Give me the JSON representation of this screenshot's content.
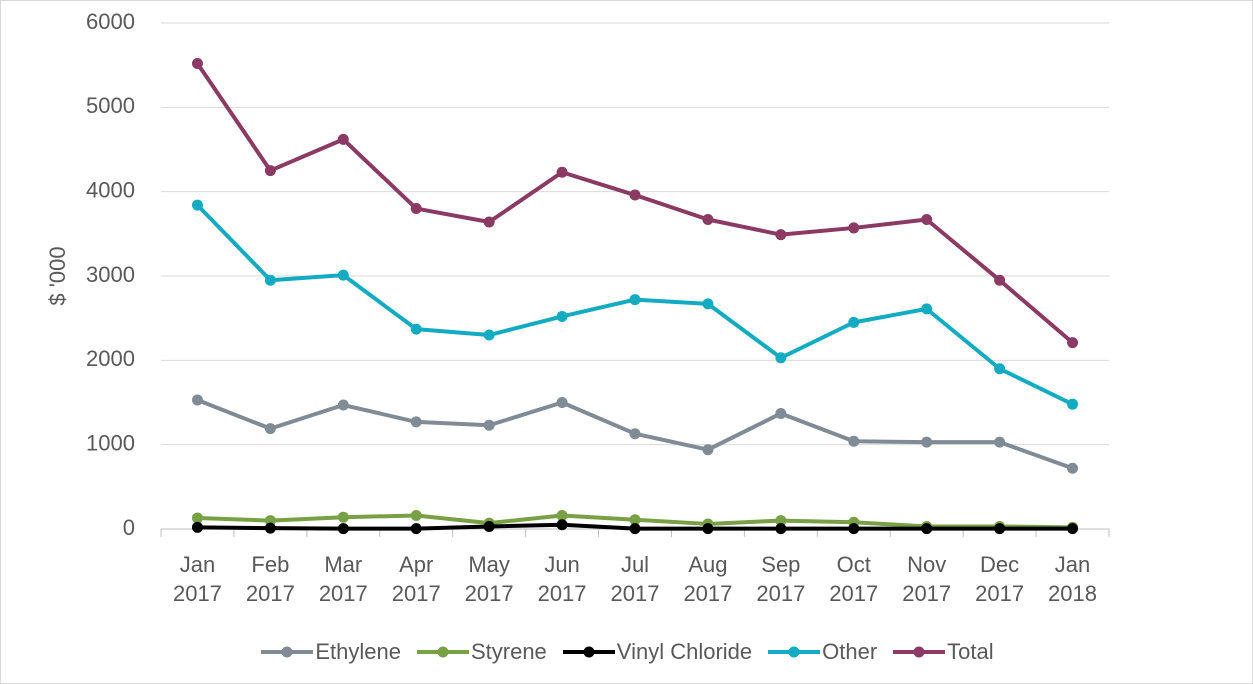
{
  "chart_data": {
    "type": "line",
    "y_label": "$ '000",
    "categories": [
      "Jan 2017",
      "Feb 2017",
      "Mar 2017",
      "Apr 2017",
      "May 2017",
      "Jun 2017",
      "Jul 2017",
      "Aug 2017",
      "Sep 2017",
      "Oct 2017",
      "Nov 2017",
      "Dec 2017",
      "Jan 2018"
    ],
    "series": [
      {
        "name": "Ethylene",
        "color": "#808b95",
        "values": [
          1530,
          1190,
          1470,
          1270,
          1230,
          1500,
          1130,
          940,
          1370,
          1040,
          1030,
          1030,
          720
        ]
      },
      {
        "name": "Styrene",
        "color": "#78a044",
        "values": [
          130,
          100,
          140,
          160,
          70,
          160,
          110,
          60,
          100,
          80,
          30,
          30,
          20
        ]
      },
      {
        "name": "Vinyl Chloride",
        "color": "#000000",
        "values": [
          20,
          10,
          5,
          5,
          30,
          50,
          5,
          5,
          5,
          5,
          5,
          5,
          5
        ]
      },
      {
        "name": "Other",
        "color": "#12abc2",
        "values": [
          3840,
          2950,
          3010,
          2370,
          2300,
          2520,
          2720,
          2670,
          2030,
          2450,
          2610,
          1900,
          1480
        ]
      },
      {
        "name": "Total",
        "color": "#8b3a63",
        "values": [
          5520,
          4250,
          4620,
          3800,
          3640,
          4230,
          3960,
          3670,
          3490,
          3570,
          3670,
          2950,
          2210
        ]
      }
    ],
    "ylim": [
      0,
      6000
    ],
    "yticks": [
      0,
      1000,
      2000,
      3000,
      4000,
      5000,
      6000
    ],
    "grid": true,
    "legend": "bottom"
  }
}
